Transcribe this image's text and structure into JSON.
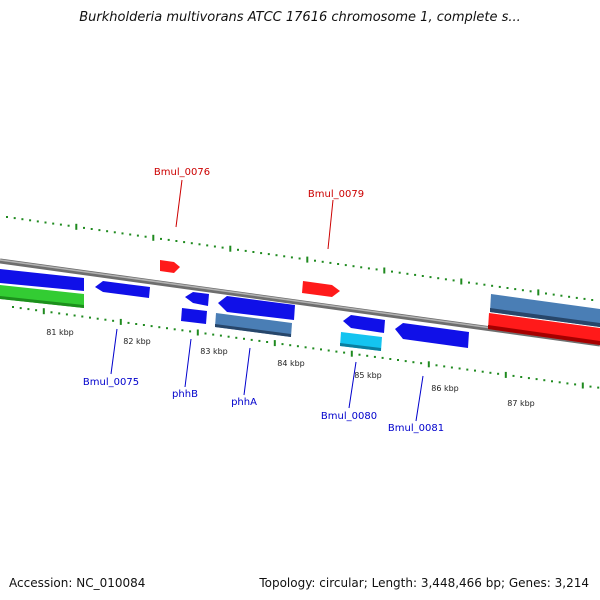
{
  "title": "Burkholderia multivorans ATCC 17616 chromosome 1, complete s...",
  "footer": {
    "accession_label": "Accession:",
    "accession": "NC_010084",
    "topology_label": "Topology:",
    "topology": "circular",
    "length_label": "Length:",
    "length": "3,448,466 bp",
    "genes_label": "Genes:",
    "genes": "3,214"
  },
  "ruler_ticks": [
    "81 kbp",
    "82 kbp",
    "83 kbp",
    "84 kbp",
    "85 kbp",
    "86 kbp",
    "87 kbp"
  ],
  "colors": {
    "backbone": "#8a8a8a",
    "tick": "#1f8a1f",
    "forward_label": "#cc0000",
    "reverse_label": "#0000cc",
    "feature_red": "#ff1a1a",
    "feature_blue": "#1010e8",
    "feature_steel": "#4a7eb5",
    "feature_cyan": "#14c4f0",
    "feature_green": "#33cc33"
  },
  "gene_labels": {
    "forward": [
      "Bmul_0076",
      "Bmul_0079"
    ],
    "reverse": [
      "Bmul_0075",
      "phhB",
      "phhA",
      "Bmul_0080",
      "Bmul_0081"
    ]
  }
}
